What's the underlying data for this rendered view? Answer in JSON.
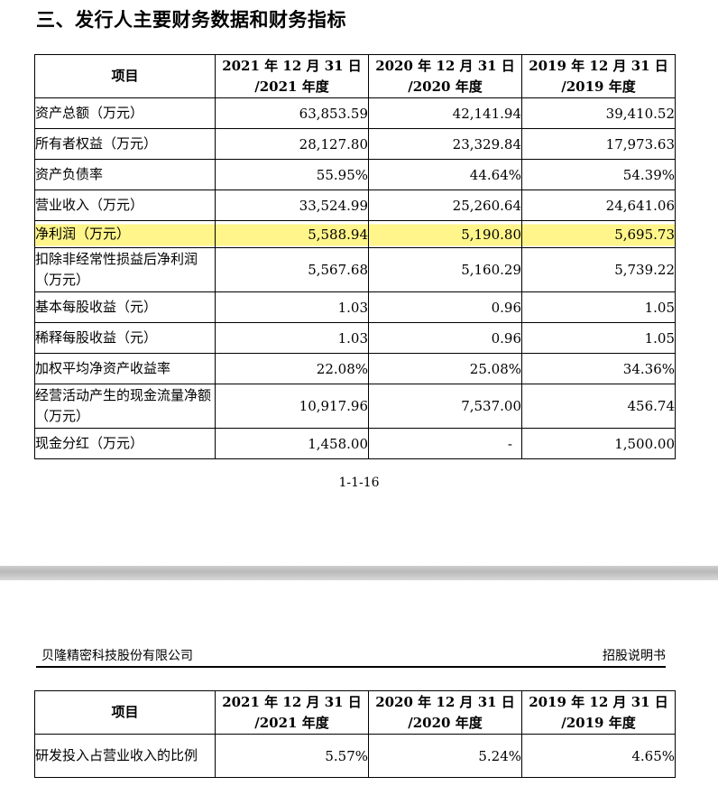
{
  "section_title": "三、发行人主要财务数据和财务指标",
  "table1": {
    "headers": {
      "item": "项目",
      "col1_line1": "2021 年 12 月 31 日",
      "col1_line2": "/2021 年度",
      "col2_line1": "2020 年 12 月 31 日",
      "col2_line2": "/2020 年度",
      "col3_line1": "2019 年 12 月 31 日",
      "col3_line2": "/2019 年度"
    },
    "rows": [
      {
        "label": "资产总额（万元）",
        "v2021": "63,853.59",
        "v2020": "42,141.94",
        "v2019": "39,410.52"
      },
      {
        "label": "所有者权益（万元）",
        "v2021": "28,127.80",
        "v2020": "23,329.84",
        "v2019": "17,973.63"
      },
      {
        "label": "资产负债率",
        "v2021": "55.95%",
        "v2020": "44.64%",
        "v2019": "54.39%"
      },
      {
        "label": "营业收入（万元）",
        "v2021": "33,524.99",
        "v2020": "25,260.64",
        "v2019": "24,641.06"
      },
      {
        "label": "净利润（万元）",
        "v2021": "5,588.94",
        "v2020": "5,190.80",
        "v2019": "5,695.73"
      },
      {
        "label": "扣除非经常性损益后净利润（万元）",
        "v2021": "5,567.68",
        "v2020": "5,160.29",
        "v2019": "5,739.22"
      },
      {
        "label": "基本每股收益（元）",
        "v2021": "1.03",
        "v2020": "0.96",
        "v2019": "1.05"
      },
      {
        "label": "稀释每股收益（元）",
        "v2021": "1.03",
        "v2020": "0.96",
        "v2019": "1.05"
      },
      {
        "label": "加权平均净资产收益率",
        "v2021": "22.08%",
        "v2020": "25.08%",
        "v2019": "34.36%"
      },
      {
        "label": "经营活动产生的现金流量净额（万元）",
        "v2021": "10,917.96",
        "v2020": "7,537.00",
        "v2019": "456.74"
      },
      {
        "label": "现金分红（万元）",
        "v2021": "1,458.00",
        "v2020": "-",
        "v2019": "1,500.00"
      }
    ]
  },
  "page_number": "1-1-16",
  "page_header": {
    "company": "贝隆精密科技股份有限公司",
    "doc_type": "招股说明书"
  },
  "table2": {
    "headers": {
      "item": "项目",
      "col1_line1": "2021 年 12 月 31 日",
      "col1_line2": "/2021 年度",
      "col2_line1": "2020 年 12 月 31 日",
      "col2_line2": "/2020 年度",
      "col3_line1": "2019 年 12 月 31 日",
      "col3_line2": "/2019 年度"
    },
    "rows": [
      {
        "label": "研发投入占营业收入的比例",
        "v2021": "5.57%",
        "v2020": "5.24%",
        "v2019": "4.65%"
      }
    ]
  },
  "colors": {
    "highlight": "#fff58a",
    "divider": "#c4c4c4"
  }
}
